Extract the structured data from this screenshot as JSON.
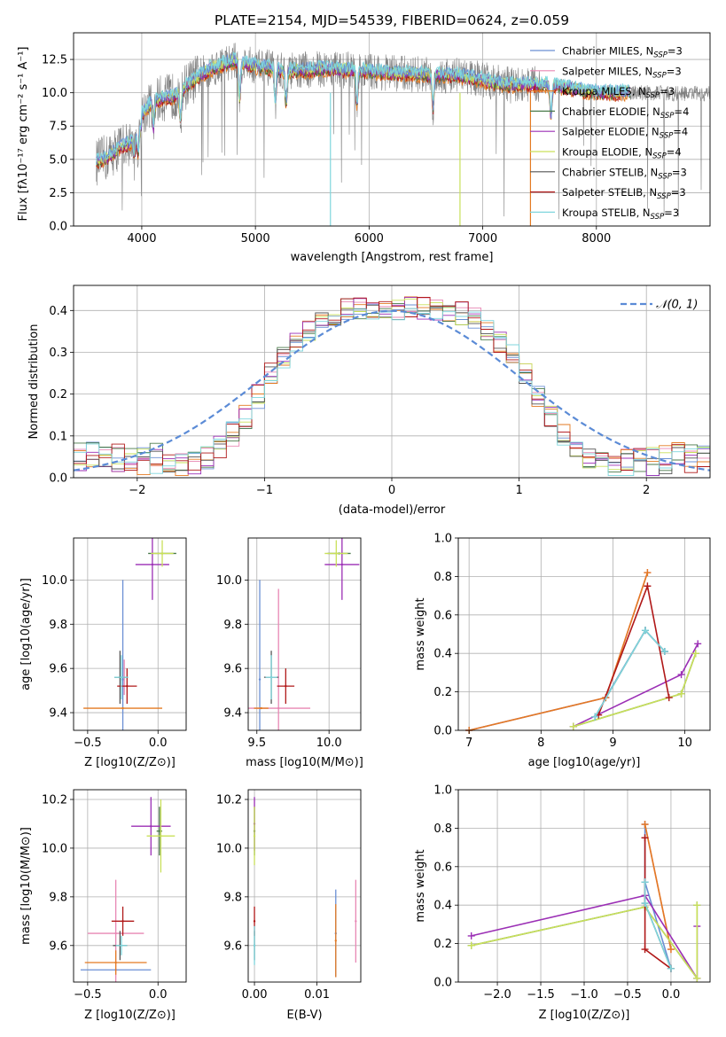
{
  "title": "PLATE=2154, MJD=54539, FIBERID=0624, z=0.059",
  "colors": {
    "Chabrier MILES": "#6a8fd4",
    "Salpeter MILES": "#e887b4",
    "Kroupa MILES": "#e37a22",
    "Chabrier ELODIE": "#4a7a4a",
    "Salpeter ELODIE": "#9b2fb5",
    "Kroupa ELODIE": "#c9e05a",
    "Chabrier STELIB": "#555555",
    "Salpeter STELIB": "#b01818",
    "Kroupa STELIB": "#7fd6dd",
    "data": "#808080",
    "gauss": "#5b8bd6"
  },
  "chart_data": [
    {
      "id": "spectrum",
      "type": "line",
      "xlabel": "wavelength [Angstrom, rest frame]",
      "ylabel": "Flux [fλ10⁻¹⁷ erg cm⁻² s⁻¹ A⁻¹]",
      "xlim": [
        3400,
        9000
      ],
      "ylim": [
        0,
        14.5
      ],
      "xticks": [
        4000,
        5000,
        6000,
        7000,
        8000
      ],
      "yticks": [
        "0.0",
        "2.5",
        "5.0",
        "7.5",
        "10.0",
        "12.5"
      ],
      "legend": [
        {
          "name": "Chabrier MILES",
          "sub": "SSP",
          "n": "3"
        },
        {
          "name": "Salpeter MILES",
          "sub": "SSP",
          "n": "3"
        },
        {
          "name": "Kroupa MILES",
          "sub": "SSP",
          "n": "3"
        },
        {
          "name": "Chabrier ELODIE",
          "sub": "SSP",
          "n": "4"
        },
        {
          "name": "Salpeter ELODIE",
          "sub": "SSP",
          "n": "4"
        },
        {
          "name": "Kroupa ELODIE",
          "sub": "SSP",
          "n": "4"
        },
        {
          "name": "Chabrier STELIB",
          "sub": "SSP",
          "n": "3"
        },
        {
          "name": "Salpeter STELIB",
          "sub": "SSP",
          "n": "3"
        },
        {
          "name": "Kroupa STELIB",
          "sub": "SSP",
          "n": "3"
        }
      ],
      "continuum": {
        "x": [
          3600,
          3700,
          3800,
          3900,
          4000,
          4100,
          4200,
          4300,
          4400,
          4600,
          4800,
          5000,
          5300,
          5600,
          6000,
          6400,
          6800,
          7200,
          7600,
          8000,
          8500,
          9000
        ],
        "y": [
          5.2,
          5.6,
          6.4,
          6.8,
          8.4,
          9.4,
          9.6,
          9.8,
          10.6,
          11.8,
          12.4,
          12.0,
          11.6,
          11.8,
          11.6,
          11.4,
          11.3,
          10.6,
          10.6,
          10.0,
          10.0,
          9.9
        ]
      },
      "data_range": [
        3600,
        9000
      ],
      "model_range": [
        3600,
        8300
      ]
    },
    {
      "id": "residuals",
      "type": "step",
      "xlabel": "(data-model)/error",
      "ylabel": "Normed distribution",
      "xlim": [
        -2.5,
        2.5
      ],
      "ylim": [
        0,
        0.46
      ],
      "xticks": [
        "−2",
        "−1",
        "0",
        "1",
        "2"
      ],
      "yticks": [
        "0.0",
        "0.1",
        "0.2",
        "0.3",
        "0.4"
      ],
      "legend": [
        "𝒩(0, 1)"
      ],
      "bin_width": 0.1,
      "x_start": -2.5
    },
    {
      "id": "age_vs_Z",
      "type": "scatter",
      "xlabel": "Z [log10(Z/Z⊙)]",
      "ylabel": "age [log10(age/yr)]",
      "xlim": [
        -0.6,
        0.2
      ],
      "ylim": [
        9.32,
        10.19
      ],
      "xticks": [
        "−0.5",
        "0.0"
      ],
      "yticks": [
        "9.4",
        "9.6",
        "9.8",
        "10.0"
      ],
      "points": [
        {
          "series": "Chabrier MILES",
          "x": -0.25,
          "y": 9.55,
          "xerr": 0.0,
          "yerr": 0.45
        },
        {
          "series": "Salpeter MILES",
          "x": -0.24,
          "y": 9.56,
          "xerr": 0.0,
          "yerr": 0.08
        },
        {
          "series": "Kroupa MILES",
          "x": -0.25,
          "y": 9.42,
          "xerr": 0.28,
          "yerr": 0.0
        },
        {
          "series": "Chabrier ELODIE",
          "x": 0.03,
          "y": 10.12,
          "xerr": 0.1,
          "yerr": 0.0
        },
        {
          "series": "Salpeter ELODIE",
          "x": -0.04,
          "y": 10.07,
          "xerr": 0.12,
          "yerr": 0.16
        },
        {
          "series": "Kroupa ELODIE",
          "x": 0.03,
          "y": 10.12,
          "xerr": 0.08,
          "yerr": 0.06
        },
        {
          "series": "Chabrier STELIB",
          "x": -0.27,
          "y": 9.56,
          "xerr": 0.04,
          "yerr": 0.12
        },
        {
          "series": "Salpeter STELIB",
          "x": -0.22,
          "y": 9.52,
          "xerr": 0.07,
          "yerr": 0.08
        },
        {
          "series": "Kroupa STELIB",
          "x": -0.26,
          "y": 9.56,
          "xerr": 0.05,
          "yerr": 0.1
        }
      ]
    },
    {
      "id": "age_vs_mass",
      "type": "scatter",
      "xlabel": "mass [log10(M/M⊙)]",
      "ylabel": "",
      "xlim": [
        9.44,
        10.22
      ],
      "ylim": [
        9.32,
        10.19
      ],
      "xticks": [
        "9.5",
        "10.0"
      ],
      "yticks": [
        "9.4",
        "9.6",
        "9.8",
        "10.0"
      ],
      "points": [
        {
          "series": "Chabrier MILES",
          "x": 9.52,
          "y": 9.55,
          "xerr": 0.0,
          "yerr": 0.45
        },
        {
          "series": "Salpeter MILES",
          "x": 9.65,
          "y": 9.42,
          "xerr": 0.22,
          "yerr": 0.54
        },
        {
          "series": "Kroupa MILES",
          "x": 9.53,
          "y": 9.42,
          "xerr": 0.05,
          "yerr": 0.0
        },
        {
          "series": "Chabrier ELODIE",
          "x": 10.07,
          "y": 10.12,
          "xerr": 0.08,
          "yerr": 0.0
        },
        {
          "series": "Salpeter ELODIE",
          "x": 10.09,
          "y": 10.07,
          "xerr": 0.12,
          "yerr": 0.16
        },
        {
          "series": "Kroupa ELODIE",
          "x": 10.05,
          "y": 10.12,
          "xerr": 0.08,
          "yerr": 0.06
        },
        {
          "series": "Chabrier STELIB",
          "x": 9.6,
          "y": 9.56,
          "xerr": 0.05,
          "yerr": 0.12
        },
        {
          "series": "Salpeter STELIB",
          "x": 9.7,
          "y": 9.52,
          "xerr": 0.06,
          "yerr": 0.08
        },
        {
          "series": "Kroupa STELIB",
          "x": 9.6,
          "y": 9.56,
          "xerr": 0.04,
          "yerr": 0.1
        }
      ]
    },
    {
      "id": "mass_weight_vs_age",
      "type": "line",
      "xlabel": "age  [log10(age/yr)]",
      "ylabel": "mass weight",
      "xlim": [
        6.85,
        10.35
      ],
      "ylim": [
        0,
        1.0
      ],
      "xticks": [
        "7",
        "8",
        "9",
        "10"
      ],
      "yticks": [
        "0.0",
        "0.2",
        "0.4",
        "0.6",
        "0.8",
        "1.0"
      ],
      "series": [
        {
          "name": "Chabrier MILES",
          "x": [
            7.0,
            8.9,
            9.45,
            9.72
          ],
          "y": [
            0.0,
            0.17,
            0.52,
            0.41
          ]
        },
        {
          "name": "Salpeter MILES",
          "x": [
            7.0,
            8.9,
            9.48
          ],
          "y": [
            0.0,
            0.17,
            0.82
          ]
        },
        {
          "name": "Kroupa MILES",
          "x": [
            7.0,
            8.9,
            9.48
          ],
          "y": [
            0.0,
            0.17,
            0.82
          ]
        },
        {
          "name": "Chabrier ELODIE",
          "x": [
            8.45,
            9.95,
            10.15
          ],
          "y": [
            0.02,
            0.19,
            0.4
          ]
        },
        {
          "name": "Salpeter ELODIE",
          "x": [
            8.45,
            9.95,
            10.18
          ],
          "y": [
            0.02,
            0.29,
            0.45
          ]
        },
        {
          "name": "Kroupa ELODIE",
          "x": [
            8.45,
            9.95,
            10.15
          ],
          "y": [
            0.02,
            0.19,
            0.4
          ]
        },
        {
          "name": "Chabrier STELIB",
          "x": [
            8.75,
            9.45,
            9.72
          ],
          "y": [
            0.07,
            0.52,
            0.41
          ]
        },
        {
          "name": "Salpeter STELIB",
          "x": [
            8.8,
            9.48,
            9.78
          ],
          "y": [
            0.08,
            0.75,
            0.17
          ]
        },
        {
          "name": "Kroupa STELIB",
          "x": [
            8.75,
            9.45,
            9.72
          ],
          "y": [
            0.07,
            0.52,
            0.41
          ]
        }
      ]
    },
    {
      "id": "mass_vs_Z",
      "type": "scatter",
      "xlabel": "Z [log10(Z/Z⊙)]",
      "ylabel": "mass [log10(M/M⊙)]",
      "xlim": [
        -0.6,
        0.2
      ],
      "ylim": [
        9.45,
        10.24
      ],
      "xticks": [
        "−0.5",
        "0.0"
      ],
      "yticks": [
        "9.6",
        "9.8",
        "10.0",
        "10.2"
      ],
      "points": [
        {
          "series": "Chabrier MILES",
          "x": -0.3,
          "y": 9.5,
          "xerr": 0.25,
          "yerr": 0.0
        },
        {
          "series": "Salpeter MILES",
          "x": -0.3,
          "y": 9.65,
          "xerr": 0.2,
          "yerr": 0.22
        },
        {
          "series": "Kroupa MILES",
          "x": -0.3,
          "y": 9.53,
          "xerr": 0.22,
          "yerr": 0.05
        },
        {
          "series": "Chabrier ELODIE",
          "x": 0.01,
          "y": 10.07,
          "xerr": 0.02,
          "yerr": 0.1
        },
        {
          "series": "Salpeter ELODIE",
          "x": -0.05,
          "y": 10.09,
          "xerr": 0.14,
          "yerr": 0.12
        },
        {
          "series": "Kroupa ELODIE",
          "x": 0.02,
          "y": 10.05,
          "xerr": 0.1,
          "yerr": 0.15
        },
        {
          "series": "Chabrier STELIB",
          "x": -0.27,
          "y": 9.6,
          "xerr": 0.05,
          "yerr": 0.06
        },
        {
          "series": "Salpeter STELIB",
          "x": -0.25,
          "y": 9.7,
          "xerr": 0.08,
          "yerr": 0.06
        },
        {
          "series": "Kroupa STELIB",
          "x": -0.26,
          "y": 9.6,
          "xerr": 0.04,
          "yerr": 0.04
        }
      ]
    },
    {
      "id": "mass_vs_ebv",
      "type": "scatter",
      "xlabel": "E(B-V)",
      "ylabel": "",
      "xlim": [
        -0.001,
        0.017
      ],
      "ylim": [
        9.45,
        10.24
      ],
      "xticks": [
        "0.00",
        "0.01"
      ],
      "yticks": [
        "9.6",
        "9.8",
        "10.0",
        "10.2"
      ],
      "points": [
        {
          "series": "Chabrier MILES",
          "x": 0.013,
          "y": 9.65,
          "xerr": 0.0,
          "yerr": 0.18
        },
        {
          "series": "Salpeter MILES",
          "x": 0.0162,
          "y": 9.7,
          "xerr": 0.0,
          "yerr": 0.17
        },
        {
          "series": "Kroupa MILES",
          "x": 0.013,
          "y": 9.62,
          "xerr": 0.0,
          "yerr": 0.15
        },
        {
          "series": "Chabrier ELODIE",
          "x": 0.0,
          "y": 10.07,
          "xerr": 0.0,
          "yerr": 0.1
        },
        {
          "series": "Salpeter ELODIE",
          "x": 0.0,
          "y": 10.1,
          "xerr": 0.0,
          "yerr": 0.11
        },
        {
          "series": "Kroupa ELODIE",
          "x": 0.0,
          "y": 10.05,
          "xerr": 0.0,
          "yerr": 0.12
        },
        {
          "series": "Chabrier STELIB",
          "x": 0.0,
          "y": 9.6,
          "xerr": 0.0,
          "yerr": 0.06
        },
        {
          "series": "Salpeter STELIB",
          "x": 0.0,
          "y": 9.7,
          "xerr": 0.0,
          "yerr": 0.06
        },
        {
          "series": "Kroupa STELIB",
          "x": 0.0,
          "y": 9.6,
          "xerr": 0.0,
          "yerr": 0.08
        }
      ]
    },
    {
      "id": "mass_weight_vs_Z",
      "type": "line",
      "xlabel": "Z [log10(Z/Z⊙)]",
      "ylabel": "mass weight",
      "xlim": [
        -2.45,
        0.45
      ],
      "ylim": [
        0,
        1.0
      ],
      "xticks": [
        "−2.0",
        "−1.5",
        "−1.0",
        "−0.5",
        "0.0"
      ],
      "yticks": [
        "0.0",
        "0.2",
        "0.4",
        "0.6",
        "0.8",
        "1.0"
      ],
      "series": [
        {
          "name": "Chabrier MILES",
          "x": [
            -0.3,
            -0.3,
            0.0
          ],
          "y": [
            0.82,
            0.52,
            0.07
          ]
        },
        {
          "name": "Salpeter MILES",
          "x": [
            -0.3,
            0.0
          ],
          "y": [
            0.82,
            0.17
          ]
        },
        {
          "name": "Kroupa MILES",
          "x": [
            -0.3,
            0.0
          ],
          "y": [
            0.82,
            0.17
          ]
        },
        {
          "name": "Chabrier ELODIE",
          "x": [
            -2.3,
            -0.3,
            0.3,
            0.3
          ],
          "y": [
            0.19,
            0.39,
            0.02,
            0.4
          ]
        },
        {
          "name": "Salpeter ELODIE",
          "x": [
            -2.3,
            -0.3,
            0.3,
            0.3
          ],
          "y": [
            0.24,
            0.45,
            0.02,
            0.29
          ]
        },
        {
          "name": "Kroupa ELODIE",
          "x": [
            -2.3,
            -0.3,
            0.3,
            0.3
          ],
          "y": [
            0.19,
            0.39,
            0.02,
            0.4
          ]
        },
        {
          "name": "Chabrier STELIB",
          "x": [
            -0.3,
            -0.3,
            0.0
          ],
          "y": [
            0.52,
            0.41,
            0.07
          ]
        },
        {
          "name": "Salpeter STELIB",
          "x": [
            -0.3,
            -0.3,
            0.0
          ],
          "y": [
            0.75,
            0.17,
            0.07
          ]
        },
        {
          "name": "Kroupa STELIB",
          "x": [
            -0.3,
            -0.3,
            0.0
          ],
          "y": [
            0.52,
            0.41,
            0.07
          ]
        }
      ]
    }
  ]
}
